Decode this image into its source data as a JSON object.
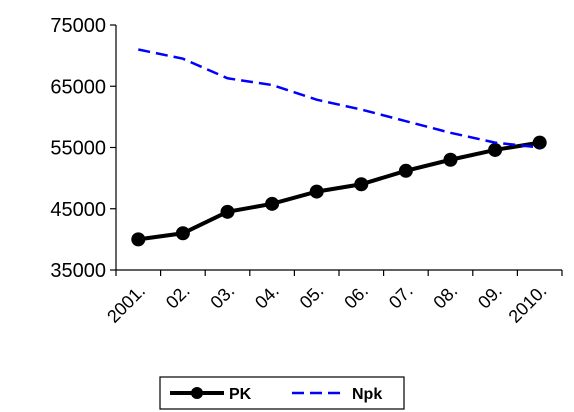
{
  "chart_data": {
    "type": "line",
    "categories": [
      "2001.",
      "02.",
      "03.",
      "04.",
      "05.",
      "06.",
      "07.",
      "08.",
      "09.",
      "2010."
    ],
    "series": [
      {
        "name": "PK",
        "values": [
          40000,
          41000,
          44500,
          45800,
          47800,
          49000,
          51200,
          53000,
          54600,
          55800
        ],
        "color": "#000000",
        "style": "solid",
        "marker": "circle"
      },
      {
        "name": "Npk",
        "values": [
          71000,
          69500,
          66300,
          65200,
          62800,
          61200,
          59300,
          57400,
          55800,
          55000
        ],
        "color": "#0000ff",
        "style": "dashed",
        "marker": "none"
      }
    ],
    "y_ticks": [
      "35000",
      "45000",
      "55000",
      "65000",
      "75000"
    ],
    "ylim": [
      35000,
      75000
    ],
    "grid": false,
    "legend_position": "bottom"
  }
}
